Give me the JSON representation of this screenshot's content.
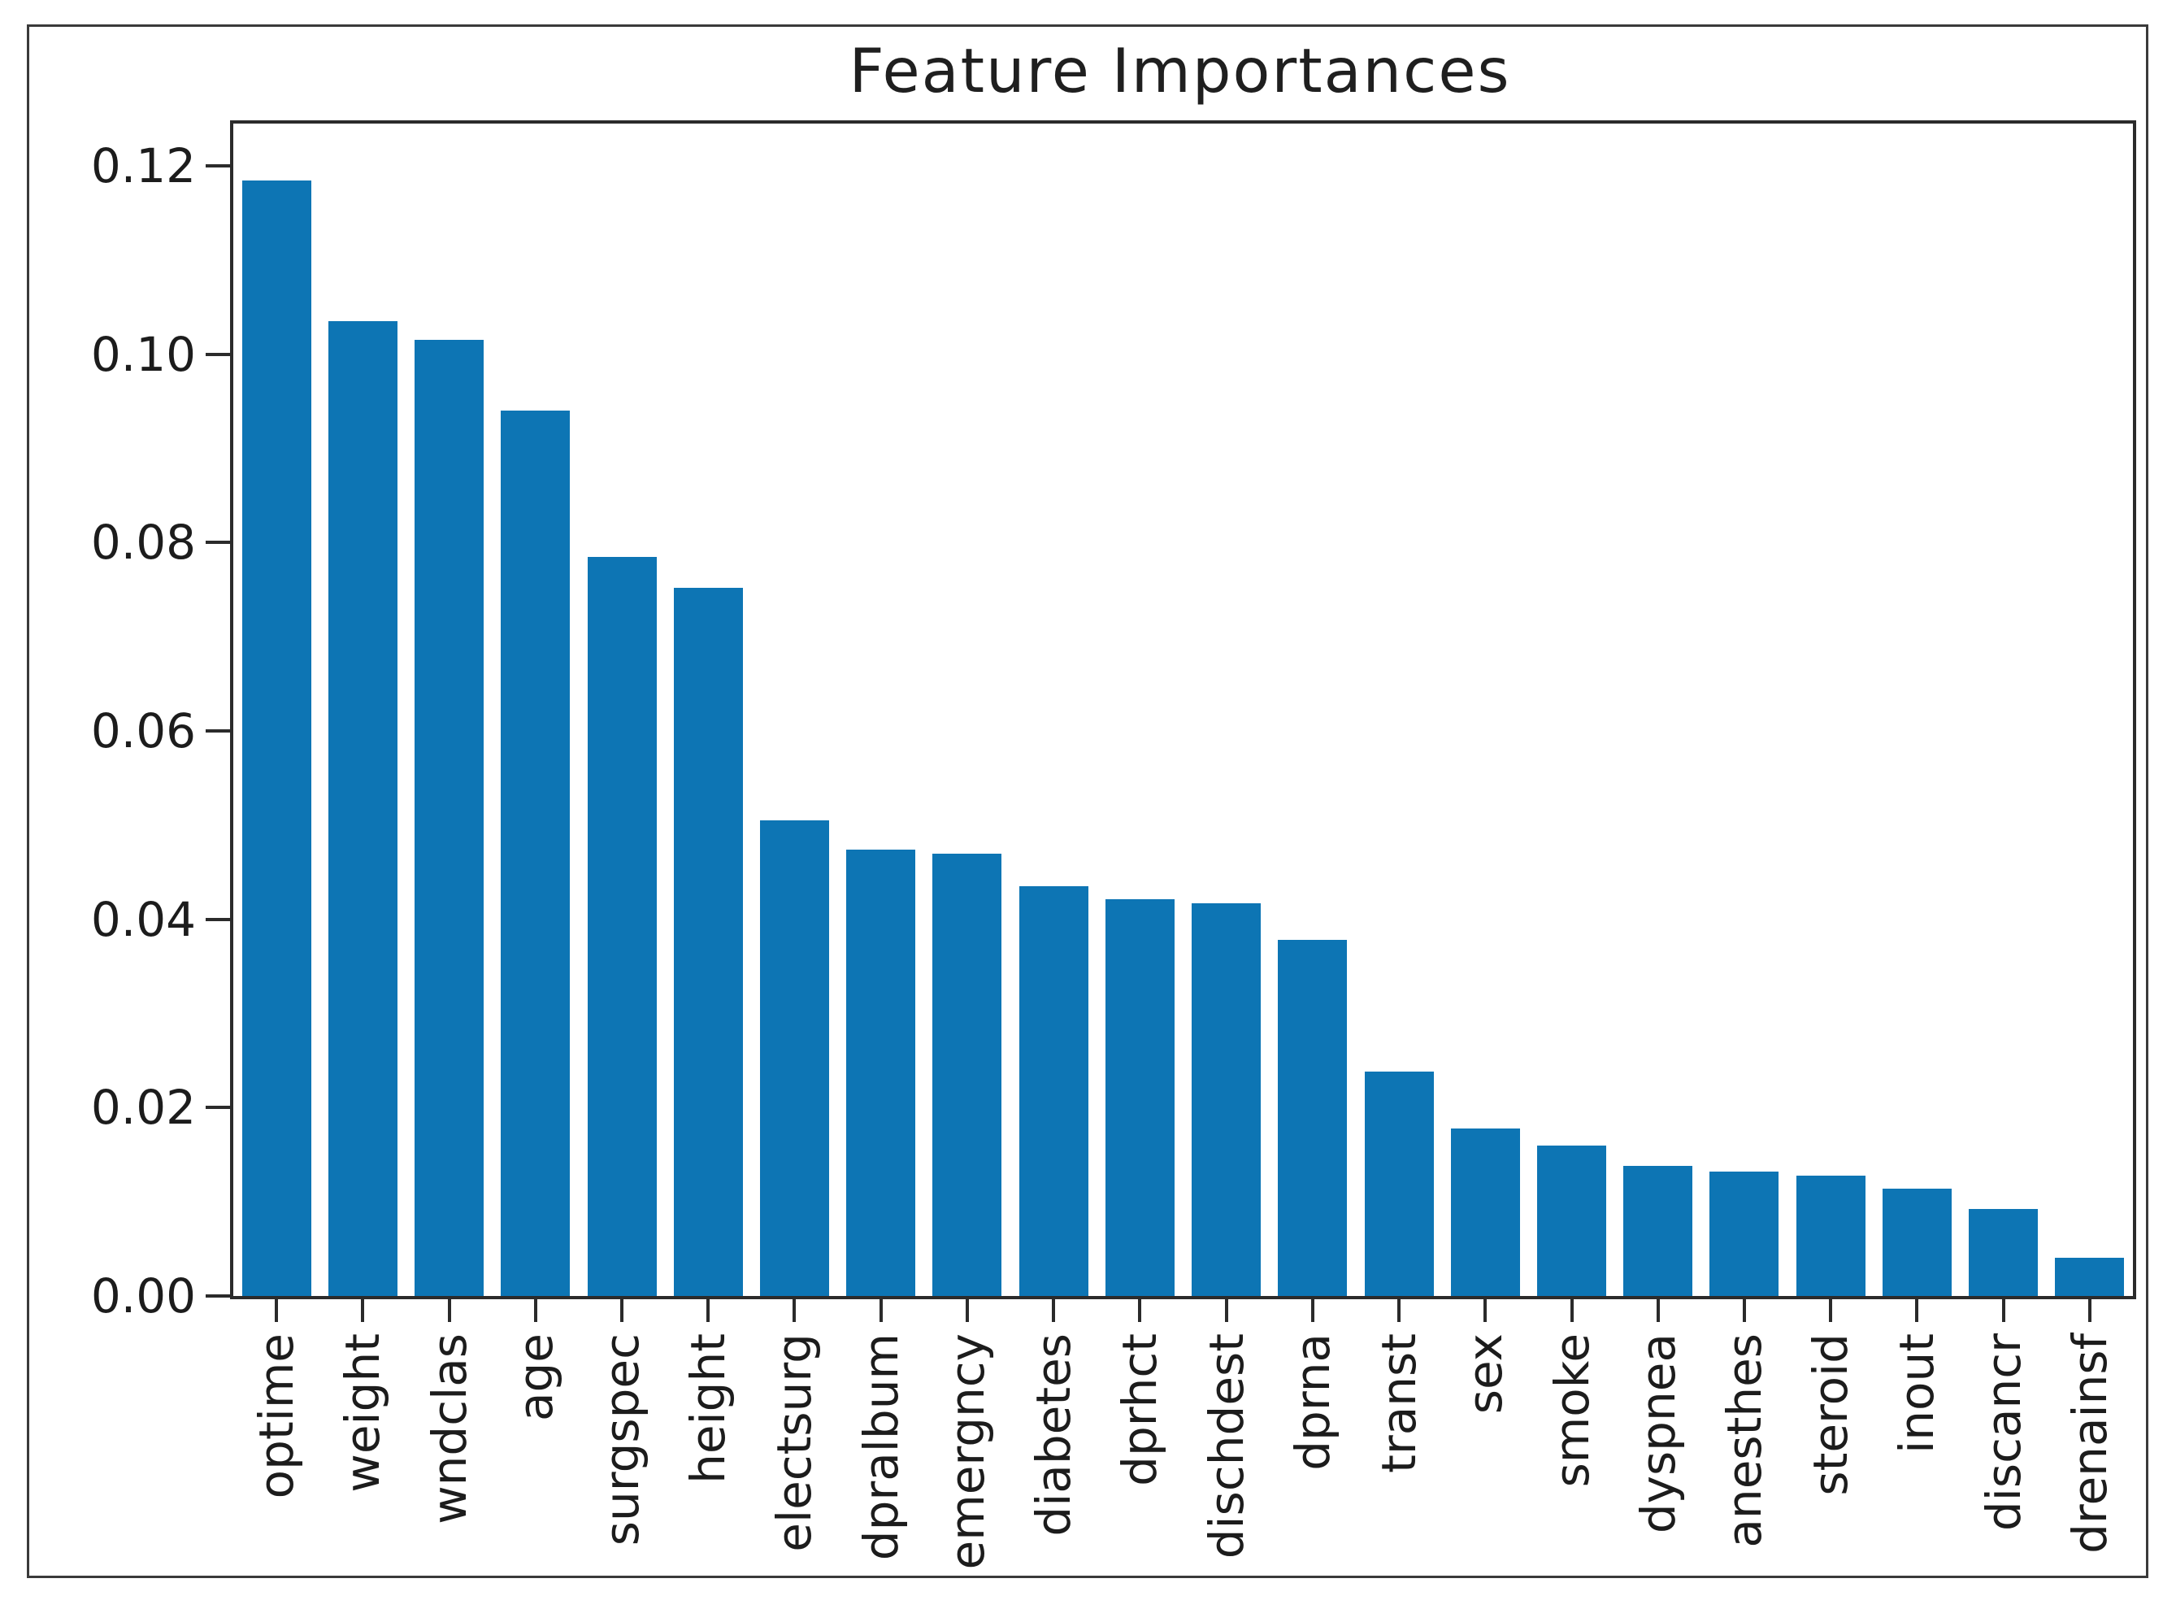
{
  "figure": {
    "title": "Feature Importances"
  },
  "chart_data": {
    "type": "bar",
    "title": "Feature Importances",
    "xlabel": "",
    "ylabel": "",
    "categories": [
      "optime",
      "weight",
      "wndclas",
      "age",
      "surgspec",
      "height",
      "electsurg",
      "dpralbum",
      "emergncy",
      "diabetes",
      "dprhct",
      "dischdest",
      "dprna",
      "transt",
      "sex",
      "smoke",
      "dyspnea",
      "anesthes",
      "steroid",
      "inout",
      "discancr",
      "drenainsf"
    ],
    "values": [
      0.1185,
      0.1035,
      0.1015,
      0.094,
      0.0785,
      0.0752,
      0.0505,
      0.0474,
      0.047,
      0.0435,
      0.0421,
      0.0417,
      0.0378,
      0.0238,
      0.0178,
      0.016,
      0.0138,
      0.0132,
      0.0128,
      0.0114,
      0.0092,
      0.0041
    ],
    "ylim": [
      0,
      0.1245
    ],
    "yticks": [
      0.0,
      0.02,
      0.04,
      0.06,
      0.08,
      0.1,
      0.12
    ],
    "ytick_format": "0.00",
    "xtick_rotation": 90,
    "bar_color": "#0d75b4",
    "grid": false,
    "legend": "none"
  }
}
